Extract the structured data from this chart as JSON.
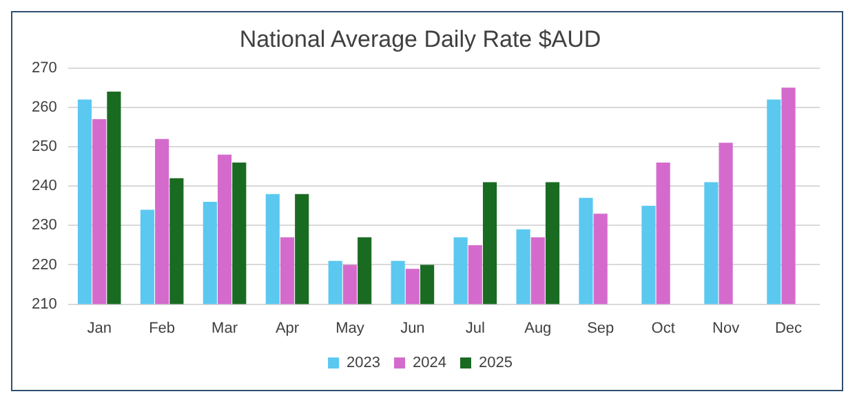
{
  "chart_data": {
    "type": "bar",
    "title": "National Average Daily Rate $AUD",
    "categories": [
      "Jan",
      "Feb",
      "Mar",
      "Apr",
      "May",
      "Jun",
      "Jul",
      "Aug",
      "Sep",
      "Oct",
      "Nov",
      "Dec"
    ],
    "series": [
      {
        "name": "2023",
        "color": "#5bc8f0",
        "values": [
          262,
          234,
          236,
          238,
          221,
          221,
          227,
          229,
          237,
          235,
          241,
          262
        ]
      },
      {
        "name": "2024",
        "color": "#d46bcc",
        "values": [
          257,
          252,
          248,
          227,
          220,
          219,
          225,
          227,
          233,
          246,
          251,
          265
        ]
      },
      {
        "name": "2025",
        "color": "#1a6b22",
        "values": [
          264,
          242,
          246,
          238,
          227,
          220,
          241,
          241,
          null,
          null,
          null,
          null
        ]
      }
    ],
    "ylim": [
      210,
      270
    ],
    "yticks": [
      210,
      220,
      230,
      240,
      250,
      260,
      270
    ],
    "grid": "y",
    "legend": "bottom"
  }
}
